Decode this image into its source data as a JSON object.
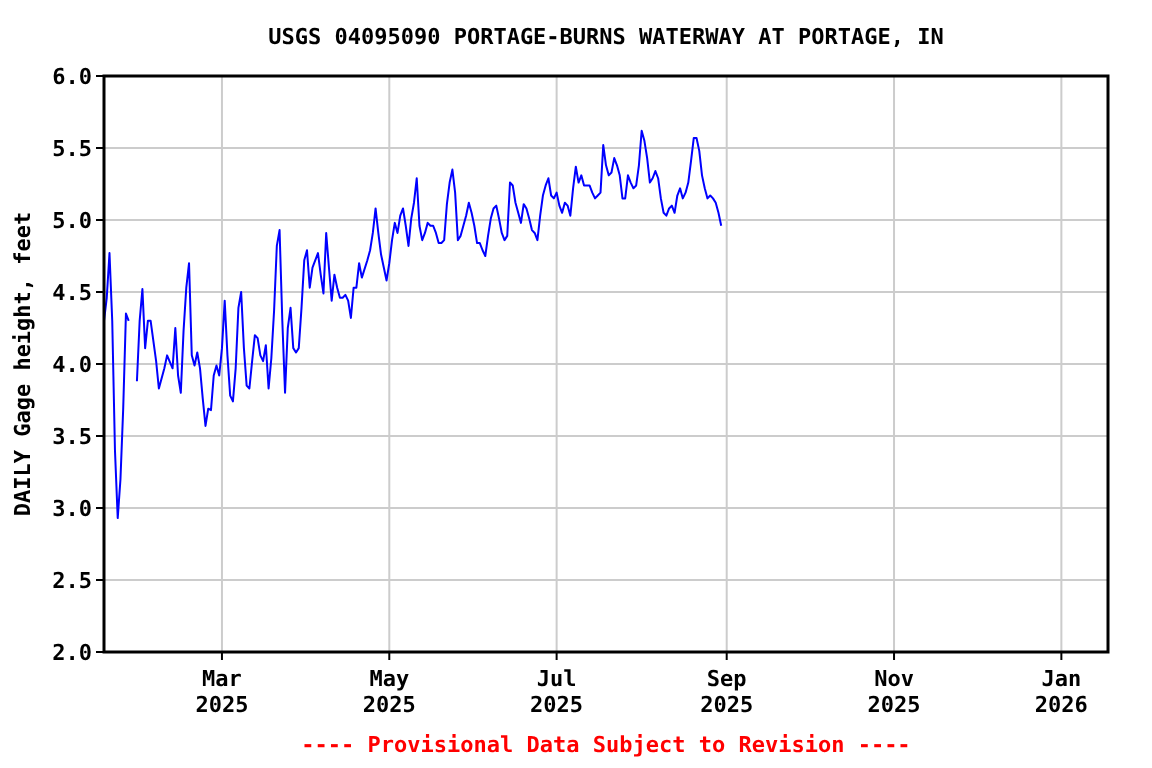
{
  "chart_data": {
    "type": "line",
    "title": "USGS 04095090 PORTAGE-BURNS WATERWAY AT PORTAGE, IN",
    "ylabel": "DAILY Gage height, feet",
    "annotations": [
      "---- Provisional Data Subject to Revision ----"
    ],
    "xlim": [
      "2025-01-17",
      "2026-01-18"
    ],
    "xticks": [
      {
        "value": "2025-03-01",
        "label": "Mar\n2025"
      },
      {
        "value": "2025-05-01",
        "label": "May\n2025"
      },
      {
        "value": "2025-07-01",
        "label": "Jul\n2025"
      },
      {
        "value": "2025-09-01",
        "label": "Sep\n2025"
      },
      {
        "value": "2025-11-01",
        "label": "Nov\n2025"
      },
      {
        "value": "2026-01-01",
        "label": "Jan\n2026"
      }
    ],
    "ylim": [
      2,
      6
    ],
    "yticks": [
      {
        "value": 2,
        "label": "2.0"
      },
      {
        "value": 2.5,
        "label": "2.5"
      },
      {
        "value": 3,
        "label": "3.0"
      },
      {
        "value": 3.5,
        "label": "3.5"
      },
      {
        "value": 4,
        "label": "4.0"
      },
      {
        "value": 4.5,
        "label": "4.5"
      },
      {
        "value": 5,
        "label": "5.0"
      },
      {
        "value": 5.5,
        "label": "5.5"
      },
      {
        "value": 6,
        "label": "6.0"
      }
    ],
    "grid": true,
    "series": [
      {
        "color": "#0000ff",
        "x": [
          "2025-01-17",
          "2025-01-18",
          "2025-01-19",
          "2025-01-20",
          "2025-01-21",
          "2025-01-22",
          "2025-01-23",
          "2025-01-24",
          "2025-01-25",
          "2025-01-26",
          "2025-01-27",
          "2025-01-29",
          "2025-01-30",
          "2025-01-31",
          "2025-02-01",
          "2025-02-02",
          "2025-02-03",
          "2025-02-05",
          "2025-02-06",
          "2025-02-08",
          "2025-02-09",
          "2025-02-11",
          "2025-02-12",
          "2025-02-13",
          "2025-02-14",
          "2025-02-15",
          "2025-02-16",
          "2025-02-17",
          "2025-02-18",
          "2025-02-19",
          "2025-02-20",
          "2025-02-21",
          "2025-02-22",
          "2025-02-23",
          "2025-02-24",
          "2025-02-25",
          "2025-02-26",
          "2025-02-27",
          "2025-02-28",
          "2025-03-01",
          "2025-03-02",
          "2025-03-03",
          "2025-03-04",
          "2025-03-05",
          "2025-03-06",
          "2025-03-07",
          "2025-03-08",
          "2025-03-09",
          "2025-03-10",
          "2025-03-11",
          "2025-03-12",
          "2025-03-13",
          "2025-03-14",
          "2025-03-15",
          "2025-03-16",
          "2025-03-17",
          "2025-03-18",
          "2025-03-19",
          "2025-03-20",
          "2025-03-21",
          "2025-03-22",
          "2025-03-23",
          "2025-03-24",
          "2025-03-25",
          "2025-03-26",
          "2025-03-27",
          "2025-03-28",
          "2025-03-29",
          "2025-03-30",
          "2025-03-31",
          "2025-04-01",
          "2025-04-02",
          "2025-04-03",
          "2025-04-04",
          "2025-04-05",
          "2025-04-06",
          "2025-04-07",
          "2025-04-08",
          "2025-04-09",
          "2025-04-10",
          "2025-04-11",
          "2025-04-12",
          "2025-04-13",
          "2025-04-14",
          "2025-04-15",
          "2025-04-16",
          "2025-04-17",
          "2025-04-18",
          "2025-04-19",
          "2025-04-20",
          "2025-04-21",
          "2025-04-23",
          "2025-04-24",
          "2025-04-25",
          "2025-04-26",
          "2025-04-27",
          "2025-04-28",
          "2025-04-29",
          "2025-04-30",
          "2025-05-01",
          "2025-05-02",
          "2025-05-03",
          "2025-05-04",
          "2025-05-05",
          "2025-05-06",
          "2025-05-07",
          "2025-05-08",
          "2025-05-09",
          "2025-05-10",
          "2025-05-11",
          "2025-05-12",
          "2025-05-13",
          "2025-05-14",
          "2025-05-15",
          "2025-05-16",
          "2025-05-17",
          "2025-05-18",
          "2025-05-19",
          "2025-05-20",
          "2025-05-21",
          "2025-05-22",
          "2025-05-23",
          "2025-05-24",
          "2025-05-25",
          "2025-05-26",
          "2025-05-27",
          "2025-05-28",
          "2025-05-29",
          "2025-05-30",
          "2025-05-31",
          "2025-06-01",
          "2025-06-02",
          "2025-06-03",
          "2025-06-04",
          "2025-06-05",
          "2025-06-06",
          "2025-06-07",
          "2025-06-08",
          "2025-06-09",
          "2025-06-10",
          "2025-06-11",
          "2025-06-12",
          "2025-06-13",
          "2025-06-14",
          "2025-06-15",
          "2025-06-16",
          "2025-06-17",
          "2025-06-18",
          "2025-06-19",
          "2025-06-20",
          "2025-06-21",
          "2025-06-22",
          "2025-06-23",
          "2025-06-24",
          "2025-06-25",
          "2025-06-26",
          "2025-06-27",
          "2025-06-28",
          "2025-06-29",
          "2025-06-30",
          "2025-07-01",
          "2025-07-02",
          "2025-07-03",
          "2025-07-04",
          "2025-07-05",
          "2025-07-06",
          "2025-07-07",
          "2025-07-08",
          "2025-07-09",
          "2025-07-10",
          "2025-07-11",
          "2025-07-12",
          "2025-07-13",
          "2025-07-14",
          "2025-07-15",
          "2025-07-16",
          "2025-07-17",
          "2025-07-18",
          "2025-07-19",
          "2025-07-20",
          "2025-07-21",
          "2025-07-22",
          "2025-07-23",
          "2025-07-24",
          "2025-07-25",
          "2025-07-26",
          "2025-07-27",
          "2025-07-28",
          "2025-07-29",
          "2025-07-30",
          "2025-07-31",
          "2025-08-01",
          "2025-08-02",
          "2025-08-03",
          "2025-08-04",
          "2025-08-05",
          "2025-08-06",
          "2025-08-07",
          "2025-08-08",
          "2025-08-09",
          "2025-08-10",
          "2025-08-11",
          "2025-08-12",
          "2025-08-13",
          "2025-08-14",
          "2025-08-15",
          "2025-08-16",
          "2025-08-17",
          "2025-08-18",
          "2025-08-19",
          "2025-08-20",
          "2025-08-21",
          "2025-08-22",
          "2025-08-23",
          "2025-08-24",
          "2025-08-25",
          "2025-08-26",
          "2025-08-27",
          "2025-08-28",
          "2025-08-29",
          "2025-08-30"
        ],
        "values": [
          4.3,
          4.46,
          4.77,
          4.3,
          3.4,
          2.93,
          3.2,
          3.69,
          4.35,
          4.3,
          null,
          3.88,
          4.3,
          4.52,
          4.11,
          4.3,
          4.3,
          4.02,
          3.83,
          3.97,
          4.06,
          3.97,
          4.25,
          3.92,
          3.8,
          4.23,
          4.53,
          4.7,
          4.06,
          3.99,
          4.08,
          3.97,
          3.76,
          3.57,
          3.69,
          3.68,
          3.92,
          3.99,
          3.92,
          4.11,
          4.44,
          4.06,
          3.78,
          3.74,
          3.97,
          4.39,
          4.5,
          4.11,
          3.85,
          3.83,
          4.02,
          4.2,
          4.18,
          4.06,
          4.02,
          4.13,
          3.83,
          4.04,
          4.37,
          4.82,
          4.93,
          4.3,
          3.8,
          4.25,
          4.39,
          4.11,
          4.08,
          4.11,
          4.39,
          4.72,
          4.79,
          4.53,
          4.67,
          4.72,
          4.77,
          4.62,
          4.49,
          4.91,
          4.67,
          4.44,
          4.62,
          4.53,
          4.46,
          4.46,
          4.48,
          4.44,
          4.32,
          4.53,
          4.53,
          4.7,
          4.6,
          4.72,
          4.79,
          4.91,
          5.08,
          4.91,
          4.76,
          4.67,
          4.58,
          4.7,
          4.86,
          4.98,
          4.91,
          5.03,
          5.08,
          4.96,
          4.82,
          5.01,
          5.12,
          5.29,
          4.96,
          4.86,
          4.91,
          4.98,
          4.96,
          4.96,
          4.91,
          4.84,
          4.84,
          4.86,
          5.11,
          5.26,
          5.35,
          5.19,
          4.86,
          4.89,
          4.96,
          5.03,
          5.12,
          5.05,
          4.96,
          4.84,
          4.84,
          4.79,
          4.75,
          4.89,
          5.01,
          5.08,
          5.1,
          5.01,
          4.91,
          4.86,
          4.89,
          5.26,
          5.24,
          5.12,
          5.05,
          4.98,
          5.11,
          5.08,
          5.01,
          4.93,
          4.91,
          4.86,
          5.03,
          5.17,
          5.24,
          5.29,
          5.17,
          5.15,
          5.19,
          5.1,
          5.05,
          5.12,
          5.1,
          5.03,
          5.22,
          5.37,
          5.26,
          5.31,
          5.24,
          5.24,
          5.24,
          5.19,
          5.15,
          5.17,
          5.19,
          5.52,
          5.38,
          5.31,
          5.33,
          5.43,
          5.38,
          5.31,
          5.15,
          5.15,
          5.31,
          5.26,
          5.22,
          5.24,
          5.38,
          5.62,
          5.55,
          5.43,
          5.26,
          5.29,
          5.34,
          5.29,
          5.15,
          5.05,
          5.03,
          5.08,
          5.1,
          5.05,
          5.17,
          5.22,
          5.15,
          5.19,
          5.26,
          5.41,
          5.57,
          5.57,
          5.48,
          5.31,
          5.22,
          5.15,
          5.17,
          5.15,
          5.12,
          5.05,
          4.96
        ]
      }
    ]
  }
}
